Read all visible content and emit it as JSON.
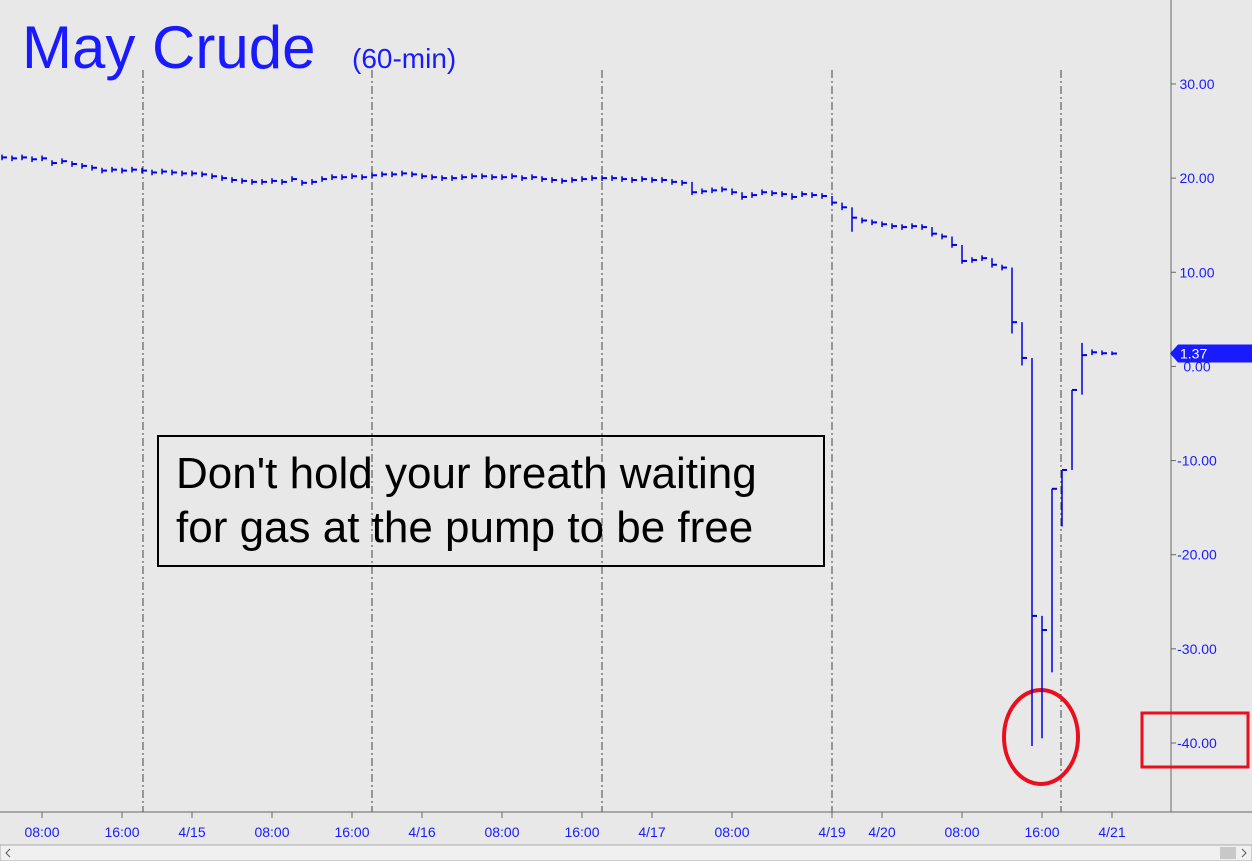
{
  "chart_data": {
    "type": "ohlc-step",
    "title": "May Crude",
    "subtitle": "(60-min)",
    "annotation": [
      "Don't hold your breath waiting",
      "for gas at the pump to be free"
    ],
    "color": "#0000e6",
    "categories": [
      null,
      null,
      null,
      null,
      "08:00",
      null,
      null,
      null,
      null,
      null,
      null,
      null,
      "16:00",
      null,
      null,
      null,
      null,
      null,
      null,
      "4/15",
      null,
      null,
      null,
      null,
      null,
      null,
      null,
      "08:00",
      null,
      null,
      null,
      null,
      null,
      null,
      null,
      "16:00",
      null,
      null,
      null,
      null,
      null,
      null,
      "4/16",
      null,
      null,
      null,
      null,
      null,
      null,
      null,
      "08:00",
      null,
      null,
      null,
      null,
      null,
      null,
      null,
      "16:00",
      null,
      null,
      null,
      null,
      null,
      null,
      "4/17",
      null,
      null,
      null,
      null,
      null,
      null,
      null,
      "08:00",
      null,
      null,
      null,
      null,
      null,
      null,
      null,
      null,
      null,
      "4/19",
      null,
      null,
      null,
      null,
      "4/20",
      null,
      null,
      null,
      null,
      null,
      null,
      null,
      "08:00",
      null,
      null,
      null,
      null,
      null,
      null,
      null,
      "16:00",
      null,
      null,
      null,
      null,
      null,
      null,
      "4/21"
    ],
    "high": [
      22.5,
      22.4,
      22.5,
      22.3,
      22.4,
      21.9,
      22.1,
      21.8,
      21.6,
      21.4,
      21.1,
      21.2,
      21.1,
      21.2,
      21.1,
      20.9,
      21.0,
      20.9,
      20.8,
      20.8,
      20.7,
      20.5,
      20.3,
      20.1,
      20.0,
      19.9,
      19.9,
      20.0,
      19.9,
      20.2,
      19.8,
      19.9,
      20.2,
      20.4,
      20.4,
      20.5,
      20.4,
      20.6,
      20.7,
      20.7,
      20.8,
      20.7,
      20.5,
      20.4,
      20.3,
      20.3,
      20.4,
      20.5,
      20.5,
      20.4,
      20.4,
      20.5,
      20.3,
      20.4,
      20.2,
      20.1,
      20.0,
      20.1,
      20.2,
      20.3,
      20.3,
      20.3,
      20.2,
      20.1,
      20.2,
      20.1,
      20.1,
      19.9,
      19.8,
      19.6,
      18.9,
      19.0,
      19.1,
      18.9,
      18.5,
      18.5,
      18.8,
      18.7,
      18.6,
      18.4,
      18.6,
      18.5,
      18.4,
      18.1,
      17.4,
      16.9,
      15.8,
      15.6,
      15.4,
      15.2,
      15.1,
      15.2,
      15.1,
      14.8,
      14.1,
      13.8,
      12.9,
      11.6,
      11.8,
      11.5,
      10.8,
      10.5,
      4.7,
      0.9,
      -26.5,
      -13,
      -11,
      -2.5,
      2.5,
      1.8,
      1.7,
      1.6
    ],
    "low": [
      21.9,
      21.8,
      21.9,
      21.7,
      21.8,
      21.3,
      21.5,
      21.2,
      21.0,
      20.8,
      20.5,
      20.6,
      20.5,
      20.6,
      20.5,
      20.3,
      20.4,
      20.3,
      20.2,
      20.2,
      20.1,
      19.9,
      19.7,
      19.5,
      19.4,
      19.3,
      19.3,
      19.4,
      19.3,
      19.6,
      19.2,
      19.3,
      19.6,
      19.8,
      19.8,
      19.9,
      19.8,
      20.0,
      20.1,
      20.1,
      20.2,
      20.1,
      19.9,
      19.8,
      19.7,
      19.7,
      19.8,
      19.9,
      19.9,
      19.8,
      19.8,
      19.9,
      19.7,
      19.8,
      19.6,
      19.5,
      19.4,
      19.5,
      19.6,
      19.7,
      19.7,
      19.7,
      19.6,
      19.5,
      19.6,
      19.5,
      19.5,
      19.3,
      19.2,
      18.2,
      18.3,
      18.4,
      18.5,
      18.2,
      17.7,
      17.9,
      18.2,
      18.1,
      18.0,
      17.7,
      18.0,
      17.9,
      17.8,
      17.1,
      16.6,
      14.3,
      15.2,
      15.0,
      14.8,
      14.6,
      14.5,
      14.6,
      14.5,
      13.8,
      13.5,
      12.6,
      10.9,
      11.0,
      11.2,
      10.5,
      10.2,
      3.5,
      0.1,
      -40.32,
      -39.5,
      -32.5,
      -17,
      -11,
      -3,
      1.2,
      1.2,
      1.2
    ],
    "close": [
      22.2,
      22.1,
      22.2,
      22.0,
      22.1,
      21.6,
      21.8,
      21.5,
      21.3,
      21.1,
      20.8,
      20.9,
      20.8,
      20.9,
      20.8,
      20.6,
      20.7,
      20.6,
      20.5,
      20.5,
      20.4,
      20.2,
      20.0,
      19.8,
      19.7,
      19.6,
      19.6,
      19.7,
      19.6,
      19.9,
      19.5,
      19.6,
      19.9,
      20.1,
      20.1,
      20.2,
      20.1,
      20.3,
      20.4,
      20.4,
      20.5,
      20.4,
      20.2,
      20.1,
      20.0,
      20.0,
      20.1,
      20.2,
      20.2,
      20.1,
      20.1,
      20.2,
      20.0,
      20.1,
      19.9,
      19.8,
      19.7,
      19.8,
      19.9,
      20.0,
      20.0,
      20.0,
      19.9,
      19.8,
      19.9,
      19.8,
      19.8,
      19.6,
      19.5,
      18.5,
      18.6,
      18.7,
      18.8,
      18.5,
      18.0,
      18.2,
      18.5,
      18.4,
      18.3,
      18.0,
      18.3,
      18.2,
      18.1,
      17.4,
      16.9,
      15.8,
      15.5,
      15.3,
      15.1,
      14.9,
      14.8,
      14.9,
      14.8,
      14.1,
      13.8,
      12.9,
      11.2,
      11.3,
      11.5,
      10.8,
      10.5,
      4.7,
      0.9,
      -26.5,
      -28,
      -13,
      -11,
      -2.5,
      1.2,
      1.5,
      1.4,
      1.37
    ],
    "ylim": [
      -47.33,
      38.92
    ],
    "yticks": [
      {
        "value": 30,
        "label": "30.00"
      },
      {
        "value": 20,
        "label": "20.00"
      },
      {
        "value": 10,
        "label": "10.00"
      },
      {
        "value": 0,
        "label": "0.00"
      },
      {
        "value": -10,
        "label": "-10.00"
      },
      {
        "value": -20,
        "label": "-20.00"
      },
      {
        "value": -30,
        "label": "-30.00"
      },
      {
        "value": -40,
        "label": "-40.00"
      }
    ]
  }
}
